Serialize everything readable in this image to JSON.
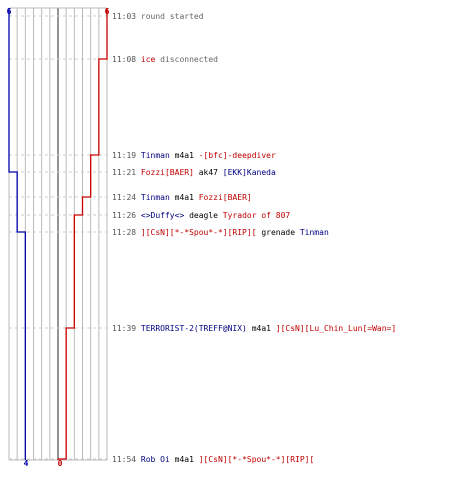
{
  "colors": {
    "ct": "#0000aa",
    "t": "#cc0000",
    "grid": "#bbbbbb",
    "center": "#777777",
    "dash": "#cccccc"
  },
  "scores": {
    "blue_top": "6",
    "red_top": "6",
    "blue_bottom": "4",
    "red_bottom": "0"
  },
  "events": [
    {
      "time": "11:03",
      "parts": [
        {
          "text": "round started",
          "style": "msg"
        }
      ]
    },
    {
      "time": "11:08",
      "parts": [
        {
          "text": "ice",
          "style": "red"
        },
        {
          "text": " disconnected",
          "style": "msg"
        }
      ]
    },
    {
      "time": "11:19",
      "parts": [
        {
          "text": "Tinman",
          "style": "blue"
        },
        {
          "text": " m4a1 ",
          "style": "black"
        },
        {
          "text": "-[bfc]-deepdiver",
          "style": "red"
        }
      ]
    },
    {
      "time": "11:21",
      "parts": [
        {
          "text": "Fozzi[BAER]",
          "style": "red"
        },
        {
          "text": " ak47 ",
          "style": "black"
        },
        {
          "text": "[EKK]Kaneda",
          "style": "blue"
        }
      ]
    },
    {
      "time": "11:24",
      "parts": [
        {
          "text": "Tinman",
          "style": "blue"
        },
        {
          "text": " m4a1 ",
          "style": "black"
        },
        {
          "text": "Fozzi[BAER]",
          "style": "red"
        }
      ]
    },
    {
      "time": "11:26",
      "parts": [
        {
          "text": "<>Duffy<>",
          "style": "blue"
        },
        {
          "text": " deagle ",
          "style": "black"
        },
        {
          "text": "Tyrador of 807",
          "style": "red"
        }
      ]
    },
    {
      "time": "11:28",
      "parts": [
        {
          "text": "][CsN][*-*Spou*-*][RIP][",
          "style": "red"
        },
        {
          "text": " grenade ",
          "style": "black"
        },
        {
          "text": "Tinman",
          "style": "blue"
        }
      ]
    },
    {
      "time": "11:39",
      "parts": [
        {
          "text": "TERRORIST-2(TREFF@NIX)",
          "style": "blue"
        },
        {
          "text": " m4a1 ",
          "style": "black"
        },
        {
          "text": "][CsN][Lu_Chin_Lun[=Wan=]",
          "style": "red"
        }
      ]
    },
    {
      "time": "11:54",
      "parts": [
        {
          "text": "Rob Oi",
          "style": "blue"
        },
        {
          "text": " m4a1 ",
          "style": "black"
        },
        {
          "text": "][CsN][*-*Spou*-*][RIP][",
          "style": "red"
        }
      ]
    }
  ],
  "blue_alive": [
    6,
    6,
    6,
    5,
    5,
    5,
    4,
    4,
    4
  ],
  "red_alive": [
    6,
    5,
    4,
    4,
    3,
    2,
    2,
    1,
    0
  ]
}
